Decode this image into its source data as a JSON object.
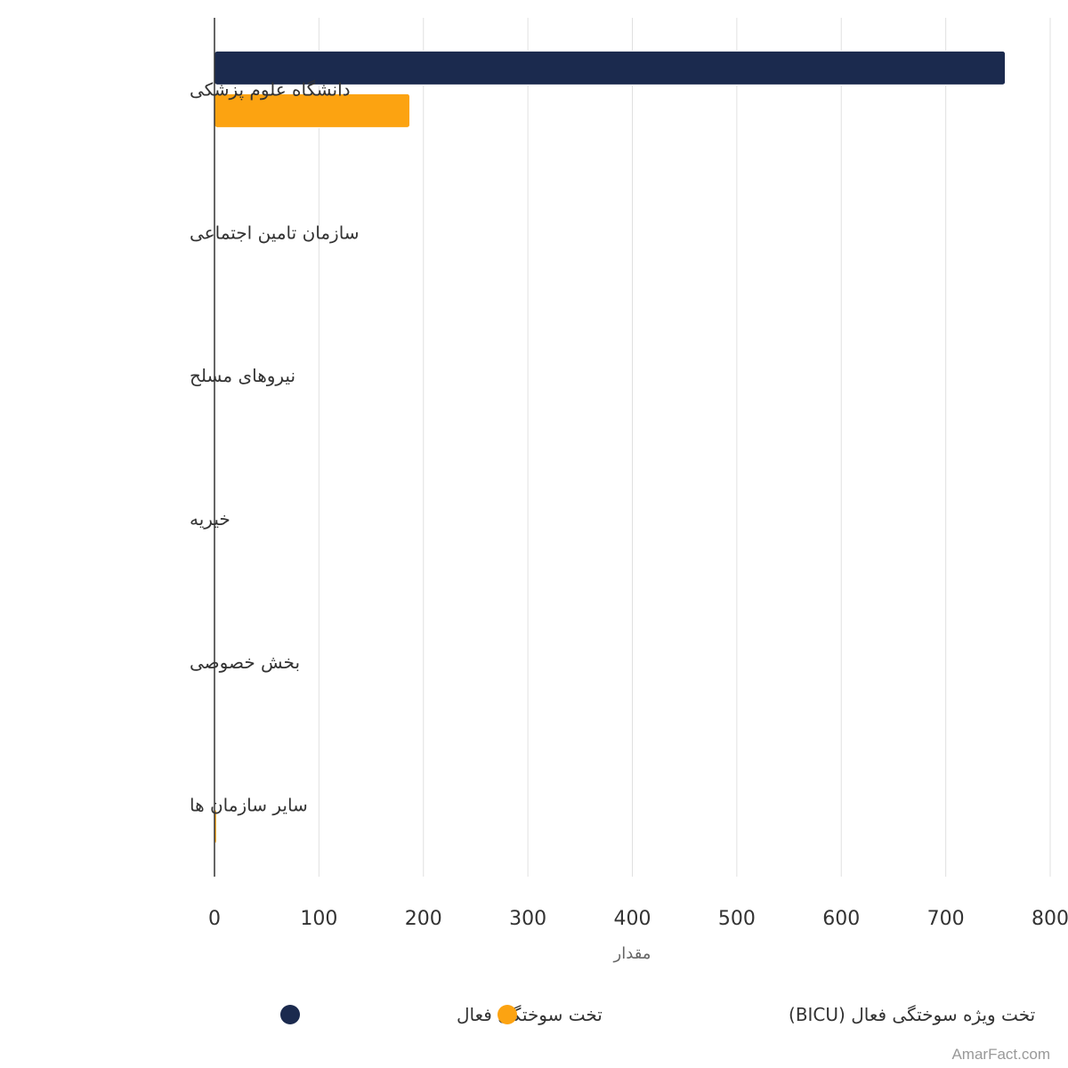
{
  "chart_data": {
    "type": "bar",
    "orientation": "horizontal",
    "categories": [
      "دانشگاه علوم پزشکی",
      "سازمان تامین اجتماعی",
      "نیروهای مسلح",
      "خیریه",
      "بخش خصوصی",
      "سایر سازمان ها"
    ],
    "series": [
      {
        "name": "تخت سوختگی فعال",
        "color": "#1b2a4e",
        "values": [
          757,
          0,
          0,
          0,
          0,
          0
        ]
      },
      {
        "name": "تخت ویژه سوختگی فعال (BICU)",
        "color": "#fca311",
        "values": [
          187,
          0,
          0,
          0,
          0,
          2
        ]
      }
    ],
    "xlabel": "مقدار",
    "xlim": [
      0,
      800
    ],
    "x_ticks": [
      0,
      100,
      200,
      300,
      400,
      500,
      600,
      700,
      800
    ],
    "grid": true,
    "legend_position": "bottom-center"
  },
  "credit": "AmarFact.com"
}
